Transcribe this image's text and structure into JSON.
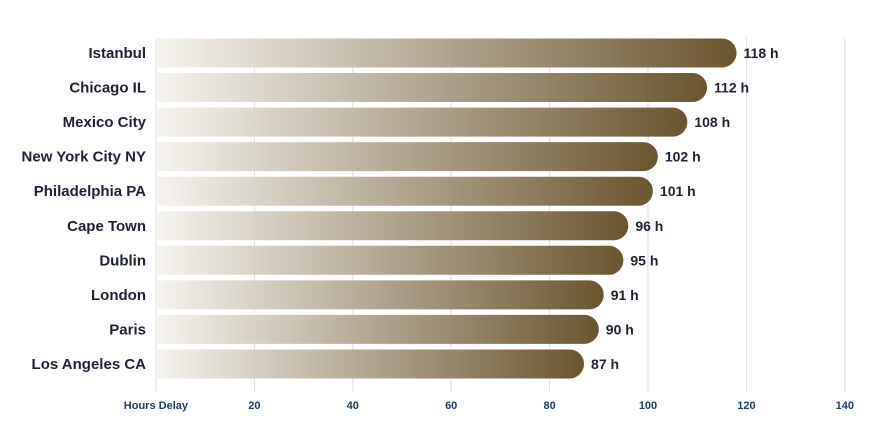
{
  "chart_data": {
    "type": "bar",
    "orientation": "horizontal",
    "categories": [
      "Istanbul",
      "Chicago IL",
      "Mexico City",
      "New York City NY",
      "Philadelphia PA",
      "Cape Town",
      "Dublin",
      "London",
      "Paris",
      "Los Angeles CA"
    ],
    "values": [
      118,
      112,
      108,
      102,
      101,
      96,
      95,
      91,
      90,
      87
    ],
    "value_labels": [
      "118 h",
      "112 h",
      "108 h",
      "102 h",
      "101 h",
      "96 h",
      "95 h",
      "91 h",
      "90 h",
      "87 h"
    ],
    "xlabel": "Hours Delay",
    "ylabel": "",
    "title": "",
    "xlim": [
      0,
      140
    ],
    "xticks": [
      20,
      40,
      60,
      80,
      100,
      120,
      140
    ],
    "grid": true,
    "legend": "none",
    "colors": {
      "bar_start": "#f6f4ef",
      "bar_end": "#6b5530",
      "category_text": "#1d2233",
      "tick_text": "#1e3a6e",
      "grid": "#d9dde6"
    }
  }
}
